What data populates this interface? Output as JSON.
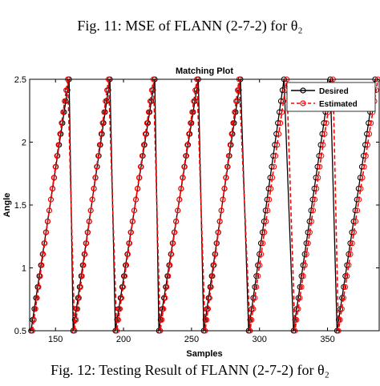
{
  "captions": {
    "top": "Fig. 11: MSE of FLANN (2-7-2) for θ₂",
    "bottom": "Fig. 12: Testing Result of FLANN (2-7-2) for θ₂"
  },
  "chart_data": {
    "type": "line",
    "title": "Matching Plot",
    "xlabel": "Samples",
    "ylabel": "Angle",
    "xlim": [
      131,
      388
    ],
    "ylim": [
      0.5,
      2.5
    ],
    "xticks": [
      150,
      200,
      250,
      300,
      350
    ],
    "yticks": [
      0.5,
      1,
      1.5,
      2,
      2.5
    ],
    "grid": false,
    "legend_position": "top-right",
    "colors": {
      "desired": "#000000",
      "estimated": "#ff0000"
    },
    "series": [
      {
        "name": "Desired",
        "style": "solid line, circle markers",
        "segments": [
          {
            "x_start": 132,
            "x_end": 160,
            "y_start": 0.5,
            "y_end": 2.5
          },
          {
            "x_start": 163,
            "x_end": 190,
            "y_start": 0.5,
            "y_end": 2.5
          },
          {
            "x_start": 194,
            "x_end": 223,
            "y_start": 0.5,
            "y_end": 2.5
          },
          {
            "x_start": 226,
            "x_end": 255,
            "y_start": 0.5,
            "y_end": 2.5
          },
          {
            "x_start": 259,
            "x_end": 286,
            "y_start": 0.5,
            "y_end": 2.5
          },
          {
            "x_start": 292,
            "x_end": 318,
            "y_start": 0.5,
            "y_end": 2.5
          },
          {
            "x_start": 325,
            "x_end": 352,
            "y_start": 0.5,
            "y_end": 2.5
          },
          {
            "x_start": 357,
            "x_end": 385,
            "y_start": 0.5,
            "y_end": 2.5
          }
        ]
      },
      {
        "name": "Estimated",
        "style": "dashed line, circle markers",
        "segments": [
          {
            "x_start": 133,
            "x_end": 159,
            "y_start": 0.5,
            "y_end": 2.5
          },
          {
            "x_start": 164,
            "x_end": 189,
            "y_start": 0.5,
            "y_end": 2.5
          },
          {
            "x_start": 195,
            "x_end": 222,
            "y_start": 0.5,
            "y_end": 2.5
          },
          {
            "x_start": 227,
            "x_end": 254,
            "y_start": 0.5,
            "y_end": 2.5
          },
          {
            "x_start": 260,
            "x_end": 285,
            "y_start": 0.5,
            "y_end": 2.5
          },
          {
            "x_start": 293,
            "x_end": 320,
            "y_start": 0.5,
            "y_end": 2.5
          },
          {
            "x_start": 326,
            "x_end": 354,
            "y_start": 0.5,
            "y_end": 2.5
          },
          {
            "x_start": 358,
            "x_end": 387,
            "y_start": 0.5,
            "y_end": 2.5
          }
        ]
      }
    ]
  }
}
